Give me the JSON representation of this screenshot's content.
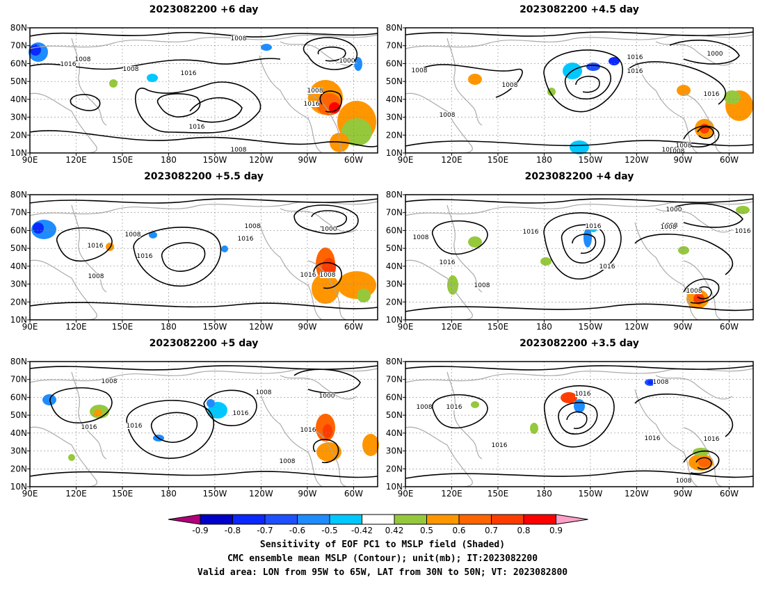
{
  "panels": [
    {
      "id": "p1",
      "title": "2023082200 +6 day"
    },
    {
      "id": "p2",
      "title": "2023082200 +4.5 day"
    },
    {
      "id": "p3",
      "title": "2023082200 +5.5 day"
    },
    {
      "id": "p4",
      "title": "2023082200 +4 day"
    },
    {
      "id": "p5",
      "title": "2023082200 +5 day"
    },
    {
      "id": "p6",
      "title": "2023082200 +3.5 day"
    }
  ],
  "lat_labels": [
    "10N",
    "20N",
    "30N",
    "40N",
    "50N",
    "60N",
    "70N",
    "80N"
  ],
  "lon_labels": [
    "90E",
    "120E",
    "150E",
    "180",
    "150W",
    "120W",
    "90W",
    "60W"
  ],
  "contour_labels": {
    "p1": [
      "1008",
      "1016",
      "1008",
      "1016",
      "1008",
      "1000",
      "1016",
      "1008",
      "1016",
      "1008"
    ],
    "p2": [
      "1008",
      "1016",
      "1008",
      "1008",
      "1008",
      "1016",
      "1000",
      "1016",
      "1008",
      "1008"
    ],
    "p3": [
      "1016",
      "1008",
      "1016",
      "1008",
      "1016",
      "1000",
      "1008",
      "1016",
      "1008"
    ],
    "p4": [
      "1008",
      "1016",
      "1016",
      "1008",
      "1008",
      "1016",
      "1000",
      "1008",
      "1016",
      "1016",
      "1008"
    ],
    "p5": [
      "1008",
      "1016",
      "1016",
      "1008",
      "1016",
      "1000",
      "1016",
      "1008"
    ],
    "p6": [
      "1008",
      "1016",
      "1016",
      "1016",
      "1008",
      "1016",
      "1016",
      "1008"
    ]
  },
  "colorbar": {
    "ticks": [
      "-0.9",
      "-0.8",
      "-0.7",
      "-0.6",
      "-0.5",
      "-0.42",
      "0.42",
      "0.5",
      "0.6",
      "0.7",
      "0.8",
      "0.9"
    ],
    "colors": [
      "#b0007a",
      "#0000c8",
      "#0a28ff",
      "#1e50ff",
      "#1e8cff",
      "#00c8ff",
      "#ffffff",
      "#96c83c",
      "#ff9600",
      "#ff6400",
      "#ff3c00",
      "#ff0000",
      "#ffa0c8"
    ]
  },
  "footer": {
    "line1": "Sensitivity of EOF PC1 to MSLP field (Shaded)",
    "line2": "CMC ensemble mean MSLP (Contour); unit(mb); IT:2023082200",
    "line3": "Valid area: LON from 95W to 65W, LAT from 30N to 50N; VT: 2023082800"
  }
}
